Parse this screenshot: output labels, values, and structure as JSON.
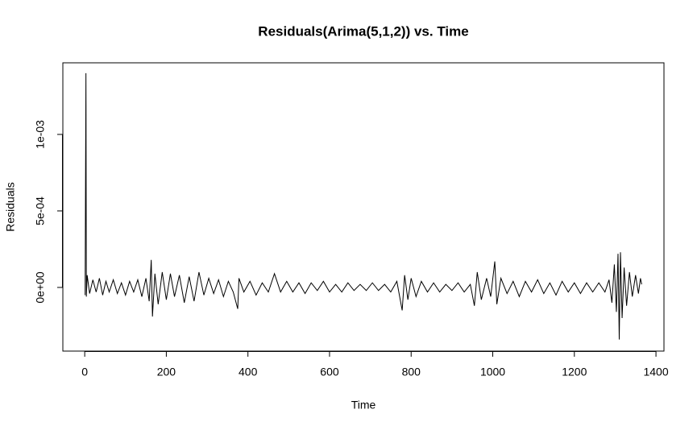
{
  "chart_data": {
    "type": "line",
    "title": "Residuals(Arima(5,1,2)) vs. Time",
    "x_label": "Time",
    "y_label": "Residuals",
    "color": "#000000",
    "x": [
      1,
      3,
      4,
      6,
      12,
      20,
      28,
      36,
      44,
      52,
      60,
      70,
      80,
      90,
      100,
      110,
      120,
      130,
      140,
      150,
      158,
      163,
      166,
      172,
      180,
      190,
      200,
      210,
      220,
      232,
      244,
      256,
      268,
      280,
      292,
      304,
      316,
      328,
      340,
      352,
      364,
      375,
      378,
      390,
      405,
      420,
      435,
      450,
      465,
      480,
      495,
      510,
      525,
      540,
      555,
      570,
      585,
      600,
      615,
      630,
      645,
      660,
      675,
      690,
      705,
      720,
      735,
      750,
      765,
      778,
      784,
      792,
      800,
      812,
      825,
      840,
      855,
      870,
      885,
      900,
      915,
      930,
      945,
      955,
      962,
      972,
      985,
      995,
      1005,
      1010,
      1020,
      1035,
      1050,
      1065,
      1080,
      1095,
      1110,
      1125,
      1140,
      1155,
      1170,
      1185,
      1200,
      1215,
      1230,
      1245,
      1260,
      1275,
      1285,
      1292,
      1298,
      1303,
      1307,
      1310,
      1313,
      1317,
      1322,
      1328,
      1335,
      1342,
      1350,
      1357,
      1362,
      1365
    ],
    "values": [
      -5e-05,
      0.0014,
      -6e-05,
      8e-05,
      -4e-05,
      5e-05,
      -3e-05,
      6e-05,
      -5e-05,
      4e-05,
      -3e-05,
      5e-05,
      -4e-05,
      3e-05,
      -5e-05,
      4e-05,
      -3e-05,
      5e-05,
      -6e-05,
      6e-05,
      -9e-05,
      0.00018,
      -0.00019,
      9e-05,
      -0.00011,
      0.0001,
      -8e-05,
      9e-05,
      -6e-05,
      8e-05,
      -0.0001,
      7e-05,
      -9e-05,
      0.0001,
      -5e-05,
      6e-05,
      -4e-05,
      5e-05,
      -6e-05,
      4e-05,
      -3e-05,
      -0.00014,
      6e-05,
      -3e-05,
      4e-05,
      -5e-05,
      3e-05,
      -3e-05,
      9e-05,
      -3e-05,
      4e-05,
      -3e-05,
      3e-05,
      -4e-05,
      3e-05,
      -2e-05,
      4e-05,
      -3e-05,
      2e-05,
      -3e-05,
      3e-05,
      -2e-05,
      2e-05,
      -2e-05,
      3e-05,
      -2e-05,
      2e-05,
      -3e-05,
      4e-05,
      -0.00015,
      8e-05,
      -8e-05,
      6e-05,
      -6e-05,
      4e-05,
      -3e-05,
      3e-05,
      -3e-05,
      2e-05,
      -2e-05,
      3e-05,
      -3e-05,
      2e-05,
      -0.00012,
      0.0001,
      -8e-05,
      6e-05,
      -6e-05,
      0.00017,
      -0.00011,
      6e-05,
      -4e-05,
      4e-05,
      -6e-05,
      4e-05,
      -3e-05,
      5e-05,
      -4e-05,
      3e-05,
      -5e-05,
      4e-05,
      -3e-05,
      3e-05,
      -4e-05,
      3e-05,
      -3e-05,
      3e-05,
      -3e-05,
      5e-05,
      -0.0001,
      0.00015,
      -0.00016,
      0.00022,
      -0.00034,
      0.00023,
      -0.0002,
      0.00013,
      -0.00012,
      0.0001,
      -6e-05,
      8e-05,
      -4e-05,
      6e-05,
      2e-05
    ],
    "xlim": [
      -53.6,
      1419.6
    ],
    "ylim": [
      -0.000416,
      0.001468
    ],
    "xticks": [
      0,
      200,
      400,
      600,
      800,
      1000,
      1200,
      1400
    ],
    "yticks": [
      {
        "value": 0,
        "label": "0e+00"
      },
      {
        "value": 0.0005,
        "label": "5e-04"
      },
      {
        "value": 0.001,
        "label": "1e-03"
      }
    ]
  }
}
